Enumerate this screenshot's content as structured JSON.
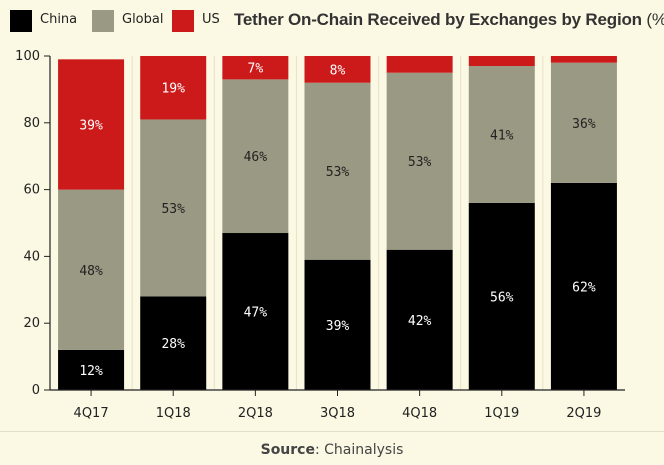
{
  "legend": [
    {
      "label": "China",
      "color": "#000000"
    },
    {
      "label": "Global",
      "color": "#9a9983"
    },
    {
      "label": "US",
      "color": "#cc1a1a"
    }
  ],
  "chart_data": {
    "type": "bar",
    "stacked": true,
    "title": "Tether On-Chain Received by Exchanges by Region",
    "title_unit": "(%)",
    "categories": [
      "4Q17",
      "1Q18",
      "2Q18",
      "3Q18",
      "4Q18",
      "1Q19",
      "2Q19"
    ],
    "series": [
      {
        "name": "China",
        "color": "#000000",
        "values": [
          12,
          28,
          47,
          39,
          42,
          56,
          62
        ],
        "labels": [
          "12%",
          "28%",
          "47%",
          "39%",
          "42%",
          "56%",
          "62%"
        ]
      },
      {
        "name": "Global",
        "color": "#9a9983",
        "values": [
          48,
          53,
          46,
          53,
          53,
          41,
          36
        ],
        "labels": [
          "48%",
          "53%",
          "46%",
          "53%",
          "53%",
          "41%",
          "36%"
        ]
      },
      {
        "name": "US",
        "color": "#cc1a1a",
        "values": [
          39,
          19,
          7,
          8,
          5,
          3,
          3
        ],
        "labels": [
          "39%",
          "19%",
          "7%",
          "8%",
          "",
          "",
          ""
        ]
      }
    ],
    "ylim": [
      0,
      100
    ],
    "yticks": [
      0,
      20,
      40,
      60,
      80,
      100
    ],
    "grid": true
  },
  "source": {
    "label": "Source",
    "text": ": Chainalysis"
  }
}
